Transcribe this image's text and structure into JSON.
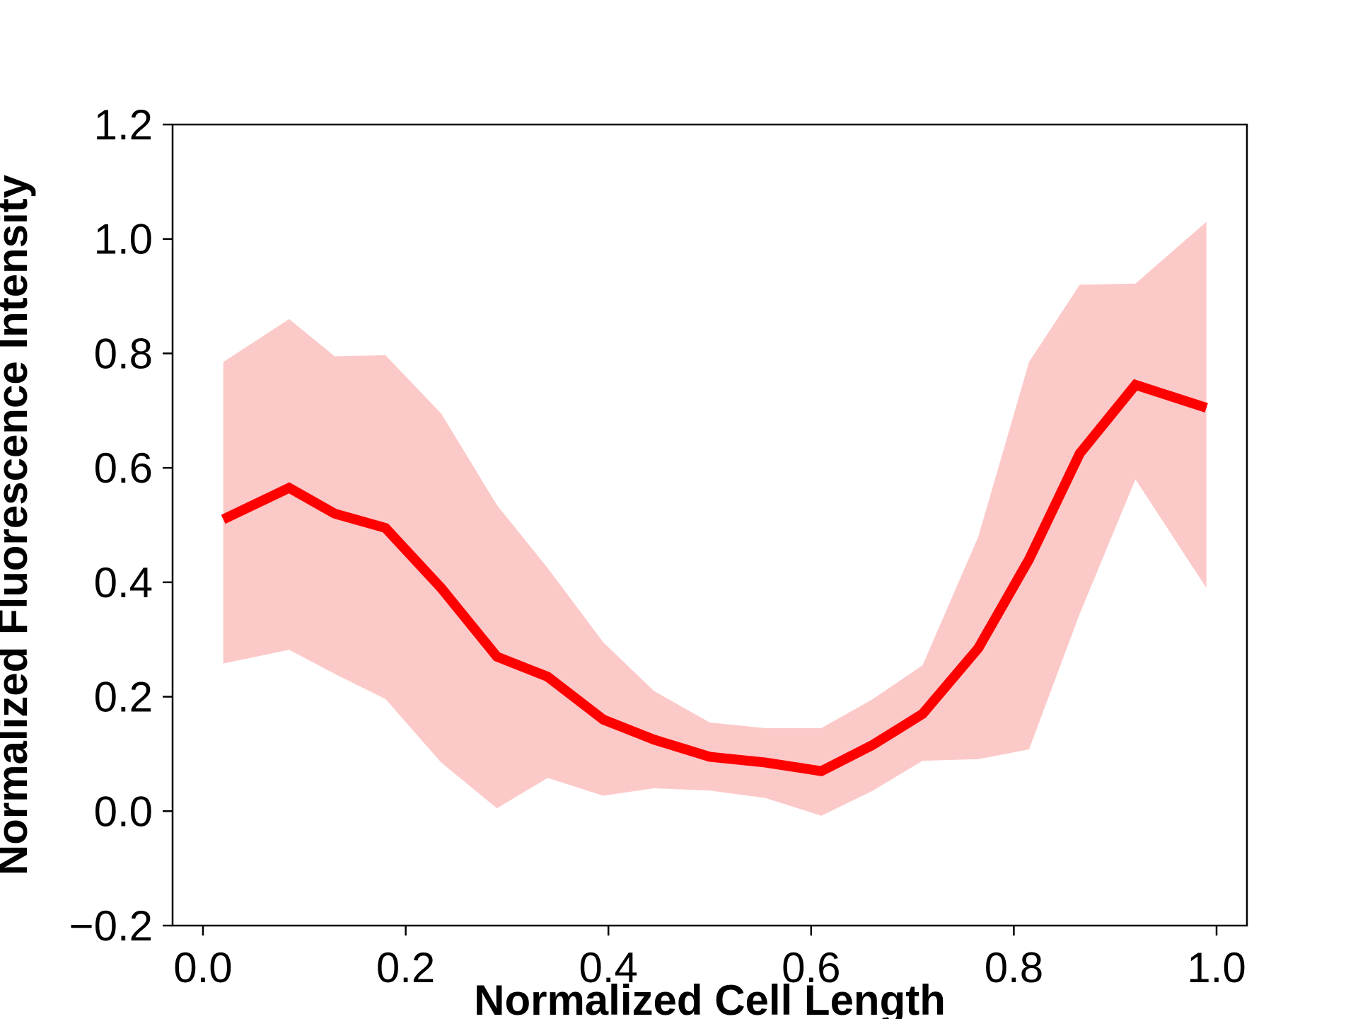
{
  "chart_data": {
    "type": "line",
    "title": "",
    "xlabel": "Normalized Cell Length",
    "ylabel": "Normalized Fluorescence Intensity",
    "xlim": [
      -0.03,
      1.03
    ],
    "ylim": [
      -0.2,
      1.2
    ],
    "xticks": [
      0.0,
      0.2,
      0.4,
      0.6,
      0.8,
      1.0
    ],
    "xtick_labels": [
      "0.0",
      "0.2",
      "0.4",
      "0.6",
      "0.8",
      "1.0"
    ],
    "yticks": [
      -0.2,
      0.0,
      0.2,
      0.4,
      0.6,
      0.8,
      1.0,
      1.2
    ],
    "ytick_labels": [
      "−0.2",
      "0.0",
      "0.2",
      "0.4",
      "0.6",
      "0.8",
      "1.0",
      "1.2"
    ],
    "grid": false,
    "legend": "none",
    "colors": {
      "line": "#ff0000",
      "band": "#fcc9c9",
      "axes": "#000000"
    },
    "series": [
      {
        "x": [
          0.02,
          0.085,
          0.13,
          0.18,
          0.235,
          0.29,
          0.34,
          0.395,
          0.445,
          0.5,
          0.555,
          0.61,
          0.66,
          0.71,
          0.765,
          0.815,
          0.865,
          0.92,
          0.99
        ],
        "mean": [
          0.51,
          0.565,
          0.52,
          0.495,
          0.39,
          0.27,
          0.235,
          0.16,
          0.125,
          0.095,
          0.085,
          0.07,
          0.115,
          0.17,
          0.285,
          0.44,
          0.625,
          0.745,
          0.705
        ],
        "upper": [
          0.785,
          0.86,
          0.795,
          0.797,
          0.695,
          0.535,
          0.425,
          0.295,
          0.21,
          0.155,
          0.145,
          0.145,
          0.195,
          0.255,
          0.48,
          0.785,
          0.92,
          0.922,
          1.03
        ],
        "lower": [
          0.258,
          0.282,
          0.24,
          0.196,
          0.085,
          0.005,
          0.058,
          0.027,
          0.04,
          0.036,
          0.023,
          -0.008,
          0.035,
          0.088,
          0.091,
          0.108,
          0.345,
          0.58,
          0.39
        ]
      }
    ]
  }
}
